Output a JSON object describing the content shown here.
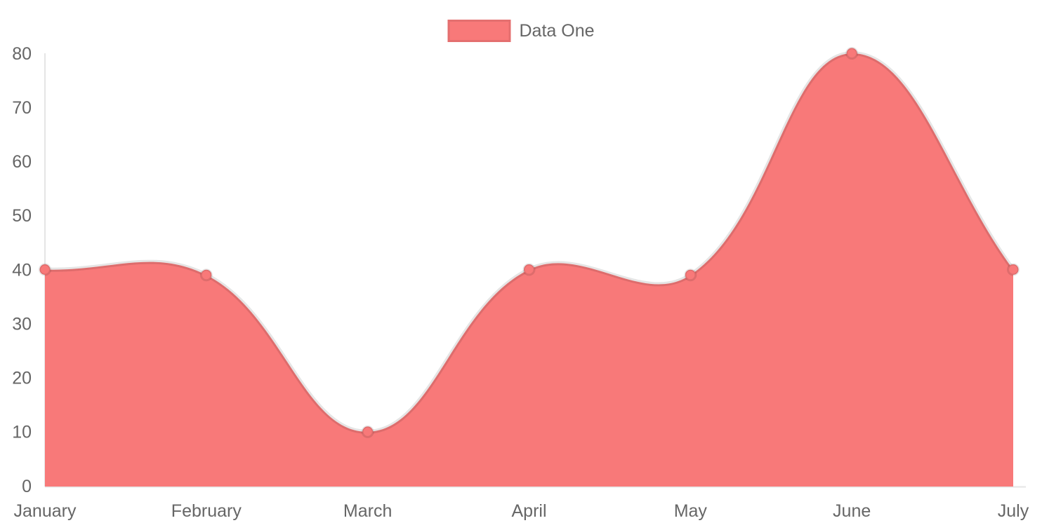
{
  "page": {
    "background_color": "#ffffff"
  },
  "legend": {
    "position": "top",
    "swatch_color": "#f87979",
    "swatch_border_color": "rgba(0,0,0,0.08)"
  },
  "chart_data": {
    "type": "area",
    "title": "",
    "xlabel": "",
    "ylabel": "",
    "categories": [
      "January",
      "February",
      "March",
      "April",
      "May",
      "June",
      "July"
    ],
    "series": [
      {
        "name": "Data One",
        "values": [
          40,
          39,
          10,
          40,
          39,
          80,
          40
        ],
        "fill_color": "#f87979",
        "point_color": "#f87979",
        "line_color": "rgba(0,0,0,0.10)"
      }
    ],
    "ylim": [
      0,
      80
    ],
    "yticks": [
      0,
      10,
      20,
      30,
      40,
      50,
      60,
      70,
      80
    ],
    "grid": false,
    "legend_position": "top",
    "curve_tension": 0.4,
    "tick_label_color": "#666666",
    "axis_line_color": "rgba(0,0,0,0.10)"
  }
}
